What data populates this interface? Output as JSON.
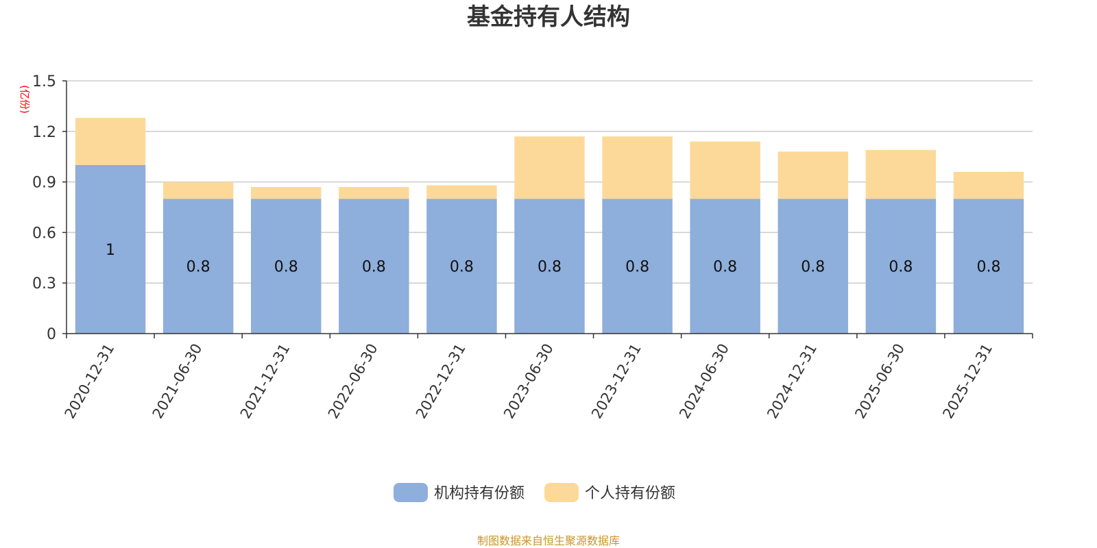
{
  "chart_data": {
    "type": "bar",
    "stacked": true,
    "title": "基金持有人结构",
    "unit_label": "(亿份)",
    "ylim": [
      0,
      1.5
    ],
    "yticks": [
      "0",
      "0.3",
      "0.6",
      "0.9",
      "1.2",
      "1.5"
    ],
    "ytick_values": [
      0,
      0.3,
      0.6,
      0.9,
      1.2,
      1.5
    ],
    "grid": true,
    "categories": [
      "2020-12-31",
      "2021-06-30",
      "2021-12-31",
      "2022-06-30",
      "2022-12-31",
      "2023-06-30",
      "2023-12-31",
      "2024-06-30",
      "2024-12-31",
      "2025-06-30",
      "2025-12-31"
    ],
    "series": [
      {
        "name": "机构持有份额",
        "color": "#8eaedb",
        "values": [
          1.0,
          0.8,
          0.8,
          0.8,
          0.8,
          0.8,
          0.8,
          0.8,
          0.8,
          0.8,
          0.8
        ],
        "labels": [
          "1",
          "0.8",
          "0.8",
          "0.8",
          "0.8",
          "0.8",
          "0.8",
          "0.8",
          "0.8",
          "0.8",
          "0.8"
        ]
      },
      {
        "name": "个人持有份额",
        "color": "#fdd999",
        "values": [
          0.28,
          0.1,
          0.07,
          0.07,
          0.08,
          0.37,
          0.37,
          0.34,
          0.28,
          0.29,
          0.16
        ]
      }
    ],
    "legend_position": "bottom-center",
    "source": "制图数据来自恒生聚源数据库"
  }
}
